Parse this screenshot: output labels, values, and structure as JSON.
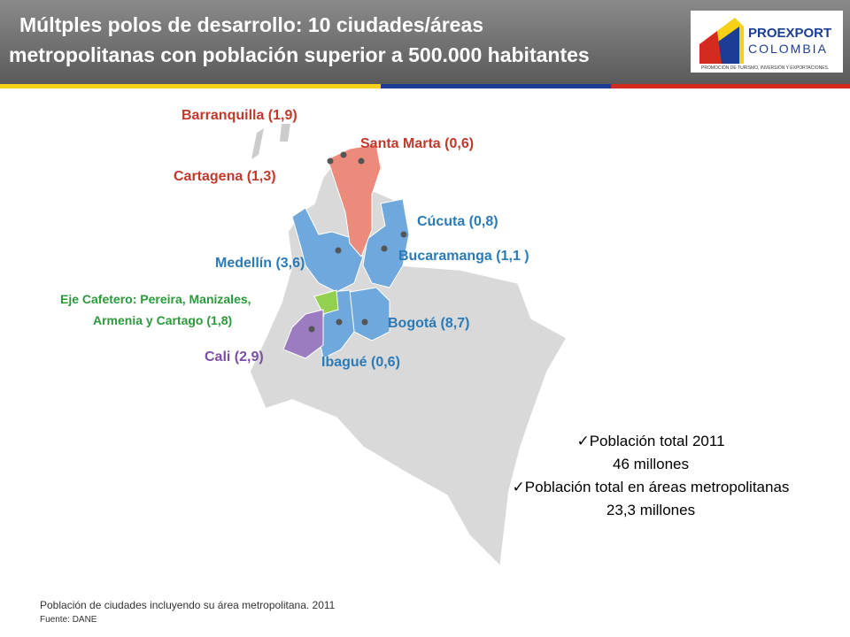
{
  "header": {
    "title_line1": "Múltples polos de desarrollo: 10 ciudades/áreas",
    "title_line2": "metropolitanas  con población superior a 500.000 habitantes",
    "logo": {
      "name": "PROEXPORT",
      "country": "COLOMBIA",
      "tagline": "PROMOCIÓN DE TURISMO, INVERSIÓN Y EXPORTACIONES."
    }
  },
  "map": {
    "labels": {
      "barranquilla": "Barranquilla (1,9)",
      "santa_marta": "Santa Marta (0,6)",
      "cartagena": "Cartagena (1,3)",
      "cucuta": "Cúcuta (0,8)",
      "medellin": "Medellín (3,6)",
      "bucaramanga": "Bucaramanga (1,1 )",
      "eje_cafetero_line1": "Eje Cafetero: Pereira, Manizales,",
      "eje_cafetero_line2": "Armenia y Cartago (1,8)",
      "bogota": "Bogotá (8,7)",
      "cali": "Cali (2,9)",
      "ibague": "Ibagué (0,6)"
    }
  },
  "summary": {
    "items": [
      {
        "label": "Población total 2011",
        "value": "46 millones"
      },
      {
        "label": "Población total en áreas metropolitanas",
        "value": "23,3 millones"
      }
    ]
  },
  "footer": {
    "note": "Población de ciudades incluyendo su área metropolitana. 2011",
    "source": "Fuente: DANE"
  }
}
